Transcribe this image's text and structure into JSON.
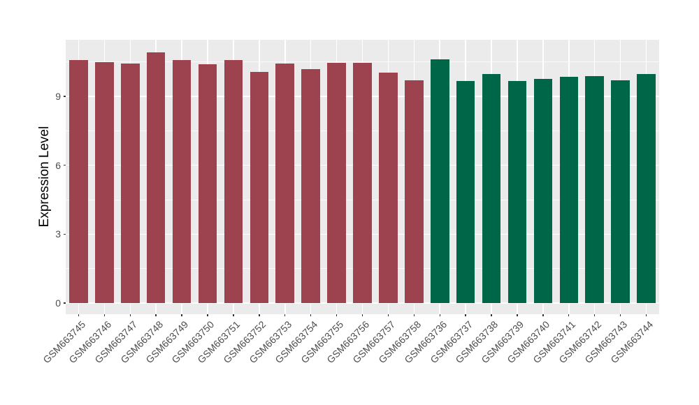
{
  "page": {
    "background_color": "#FFFFFF"
  },
  "chart_data": {
    "type": "bar",
    "title": "",
    "xlabel": "",
    "ylabel": "Expression Level",
    "categories": [
      "GSM663745",
      "GSM663746",
      "GSM663747",
      "GSM663748",
      "GSM663749",
      "GSM663750",
      "GSM663751",
      "GSM663752",
      "GSM663753",
      "GSM663754",
      "GSM663755",
      "GSM663756",
      "GSM663757",
      "GSM663758",
      "GSM663736",
      "GSM663737",
      "GSM663738",
      "GSM663739",
      "GSM663740",
      "GSM663741",
      "GSM663742",
      "GSM663743",
      "GSM663744"
    ],
    "values": [
      10.58,
      10.48,
      10.42,
      10.9,
      10.57,
      10.4,
      10.57,
      10.05,
      10.43,
      10.18,
      10.47,
      10.45,
      10.02,
      9.7,
      10.62,
      9.67,
      9.97,
      9.67,
      9.77,
      9.85,
      9.87,
      9.69,
      9.97
    ],
    "bar_groups": [
      "group1",
      "group1",
      "group1",
      "group1",
      "group1",
      "group1",
      "group1",
      "group1",
      "group1",
      "group1",
      "group1",
      "group1",
      "group1",
      "group1",
      "group2",
      "group2",
      "group2",
      "group2",
      "group2",
      "group2",
      "group2",
      "group2",
      "group2"
    ],
    "group_colors": {
      "group1": "#9D4350",
      "group2": "#006648"
    },
    "yticks": [
      0,
      3,
      6,
      9
    ],
    "ytick_labels": [
      "0",
      "3",
      "6",
      "9"
    ],
    "minor_yticks": [
      1.5,
      4.5,
      7.5,
      10.5
    ],
    "ylim": [
      -0.57,
      11.46
    ],
    "grid": true,
    "legend": false,
    "x_labels_rotation_deg": 45,
    "panel_background": "#EBEBEB",
    "gridline_color": "#FFFFFF",
    "tick_mark_color": "#333333",
    "axis_text_color": "#4D4D4D",
    "axis_title_color": "#000000"
  }
}
